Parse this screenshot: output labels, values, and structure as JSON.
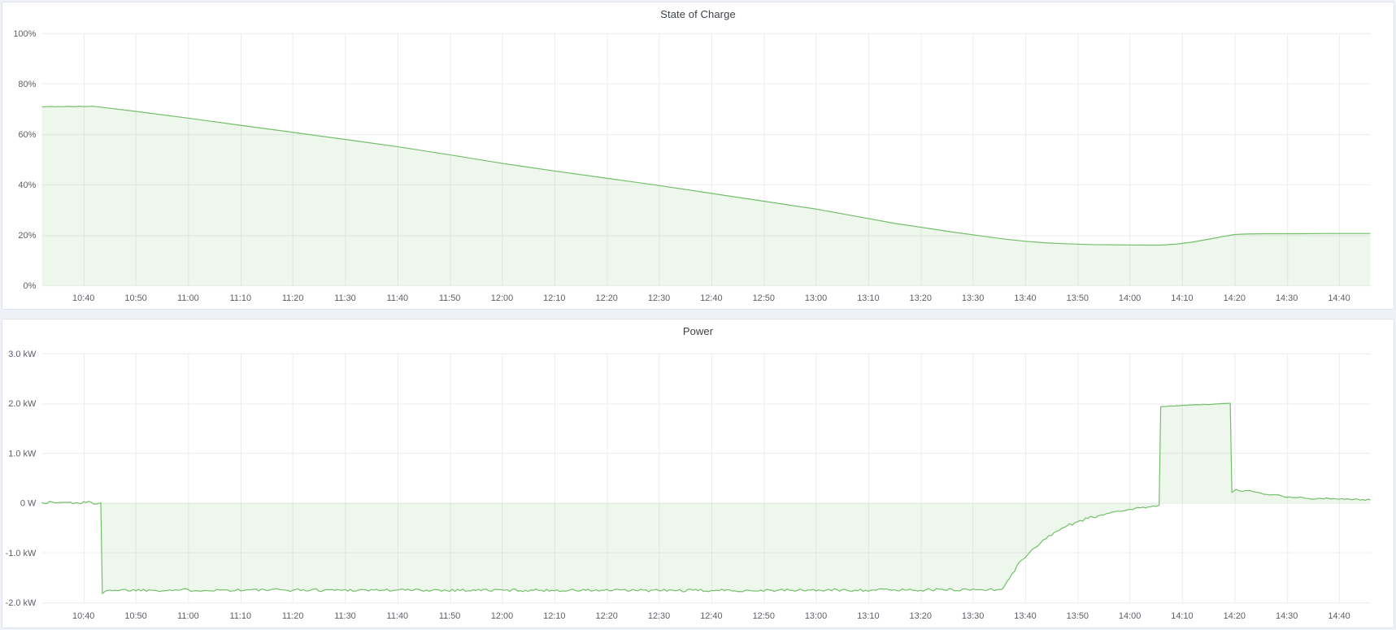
{
  "page": {
    "background": "#eef1f7",
    "panel_background": "#ffffff",
    "panel_border": "#e0e3e9"
  },
  "colors": {
    "line": "#73bf69",
    "fill": "rgba(115,191,105,0.13)",
    "grid": "#ececec",
    "axis_text": "#5b5f66",
    "title_text": "#3e4248"
  },
  "chart_data": [
    {
      "id": "soc",
      "type": "area",
      "title": "State of Charge",
      "y_unit": "%",
      "grid": true,
      "legend": "none",
      "x_range_minutes": [
        632,
        886
      ],
      "ylim": [
        0,
        100
      ],
      "baseline": 0,
      "y_ticks": [
        {
          "v": 0,
          "label": "0%"
        },
        {
          "v": 20,
          "label": "20%"
        },
        {
          "v": 40,
          "label": "40%"
        },
        {
          "v": 60,
          "label": "60%"
        },
        {
          "v": 80,
          "label": "80%"
        },
        {
          "v": 100,
          "label": "100%"
        }
      ],
      "x_ticks": [
        {
          "t": 640,
          "label": "10:40"
        },
        {
          "t": 650,
          "label": "10:50"
        },
        {
          "t": 660,
          "label": "11:00"
        },
        {
          "t": 670,
          "label": "11:10"
        },
        {
          "t": 680,
          "label": "11:20"
        },
        {
          "t": 690,
          "label": "11:30"
        },
        {
          "t": 700,
          "label": "11:40"
        },
        {
          "t": 710,
          "label": "11:50"
        },
        {
          "t": 720,
          "label": "12:00"
        },
        {
          "t": 730,
          "label": "12:10"
        },
        {
          "t": 740,
          "label": "12:20"
        },
        {
          "t": 750,
          "label": "12:30"
        },
        {
          "t": 760,
          "label": "12:40"
        },
        {
          "t": 770,
          "label": "12:50"
        },
        {
          "t": 780,
          "label": "13:00"
        },
        {
          "t": 790,
          "label": "13:10"
        },
        {
          "t": 800,
          "label": "13:20"
        },
        {
          "t": 810,
          "label": "13:30"
        },
        {
          "t": 820,
          "label": "13:40"
        },
        {
          "t": 830,
          "label": "13:50"
        },
        {
          "t": 840,
          "label": "14:00"
        },
        {
          "t": 850,
          "label": "14:10"
        },
        {
          "t": 860,
          "label": "14:20"
        },
        {
          "t": 870,
          "label": "14:30"
        },
        {
          "t": 880,
          "label": "14:40"
        }
      ],
      "series": [
        {
          "name": "State of Charge",
          "points": [
            [
              632,
              70.8,
              0.15
            ],
            [
              635,
              70.9,
              0.15
            ],
            [
              638,
              70.9,
              0.12
            ],
            [
              642,
              71.0,
              0
            ],
            [
              650,
              69.0,
              0
            ],
            [
              660,
              66.3,
              0
            ],
            [
              670,
              63.5,
              0
            ],
            [
              680,
              60.7,
              0
            ],
            [
              690,
              57.9,
              0
            ],
            [
              700,
              55.0,
              0
            ],
            [
              710,
              51.8,
              0
            ],
            [
              720,
              48.4,
              0
            ],
            [
              730,
              45.4,
              0
            ],
            [
              740,
              42.5,
              0
            ],
            [
              750,
              39.6,
              0
            ],
            [
              760,
              36.5,
              0
            ],
            [
              770,
              33.4,
              0
            ],
            [
              780,
              30.3,
              0
            ],
            [
              788,
              27.3,
              0
            ],
            [
              795,
              24.6,
              0
            ],
            [
              801,
              22.8,
              0
            ],
            [
              806,
              21.2,
              0
            ],
            [
              811,
              19.8,
              0
            ],
            [
              816,
              18.4,
              0
            ],
            [
              820,
              17.5,
              0
            ],
            [
              824,
              16.9,
              0
            ],
            [
              828,
              16.5,
              0
            ],
            [
              833,
              16.2,
              0
            ],
            [
              838,
              16.1,
              0
            ],
            [
              843,
              16.0,
              0
            ],
            [
              846,
              16.0,
              0
            ],
            [
              849,
              16.4,
              0
            ],
            [
              852,
              17.2,
              0
            ],
            [
              855,
              18.3,
              0
            ],
            [
              858,
              19.5,
              0
            ],
            [
              860,
              20.2,
              0
            ],
            [
              862,
              20.4,
              0
            ],
            [
              866,
              20.5,
              0
            ],
            [
              872,
              20.5,
              0
            ],
            [
              878,
              20.6,
              0
            ],
            [
              886,
              20.6,
              0
            ]
          ]
        }
      ]
    },
    {
      "id": "power",
      "type": "area",
      "title": "Power",
      "y_unit": "kW",
      "grid": true,
      "legend": "none",
      "x_range_minutes": [
        632,
        886
      ],
      "ylim": [
        -2.0,
        3.0
      ],
      "baseline": 0,
      "y_ticks": [
        {
          "v": -2.0,
          "label": "-2.0 kW"
        },
        {
          "v": -1.0,
          "label": "-1.0 kW"
        },
        {
          "v": 0,
          "label": "0 W"
        },
        {
          "v": 1.0,
          "label": "1.0 kW"
        },
        {
          "v": 2.0,
          "label": "2.0 kW"
        },
        {
          "v": 3.0,
          "label": "3.0 kW"
        }
      ],
      "x_ticks": [
        {
          "t": 640,
          "label": "10:40"
        },
        {
          "t": 650,
          "label": "10:50"
        },
        {
          "t": 660,
          "label": "11:00"
        },
        {
          "t": 670,
          "label": "11:10"
        },
        {
          "t": 680,
          "label": "11:20"
        },
        {
          "t": 690,
          "label": "11:30"
        },
        {
          "t": 700,
          "label": "11:40"
        },
        {
          "t": 710,
          "label": "11:50"
        },
        {
          "t": 720,
          "label": "12:00"
        },
        {
          "t": 730,
          "label": "12:10"
        },
        {
          "t": 740,
          "label": "12:20"
        },
        {
          "t": 750,
          "label": "12:30"
        },
        {
          "t": 760,
          "label": "12:40"
        },
        {
          "t": 770,
          "label": "12:50"
        },
        {
          "t": 780,
          "label": "13:00"
        },
        {
          "t": 790,
          "label": "13:10"
        },
        {
          "t": 800,
          "label": "13:20"
        },
        {
          "t": 810,
          "label": "13:30"
        },
        {
          "t": 820,
          "label": "13:40"
        },
        {
          "t": 830,
          "label": "13:50"
        },
        {
          "t": 840,
          "label": "14:00"
        },
        {
          "t": 850,
          "label": "14:10"
        },
        {
          "t": 860,
          "label": "14:20"
        },
        {
          "t": 870,
          "label": "14:30"
        },
        {
          "t": 880,
          "label": "14:40"
        }
      ],
      "series": [
        {
          "name": "Power",
          "points": [
            [
              632,
              0.01,
              0.035
            ],
            [
              643.3,
              0.0,
              0
            ],
            [
              643.6,
              -1.82,
              0
            ],
            [
              644.2,
              -1.77,
              0
            ],
            [
              645,
              -1.75,
              0.028
            ],
            [
              700,
              -1.75,
              0.028
            ],
            [
              760,
              -1.76,
              0.028
            ],
            [
              815.5,
              -1.74,
              0.02
            ],
            [
              817.5,
              -1.42,
              0.04
            ],
            [
              819.5,
              -1.14,
              0.04
            ],
            [
              821.5,
              -0.92,
              0.04
            ],
            [
              823.5,
              -0.74,
              0.035
            ],
            [
              826,
              -0.57,
              0.035
            ],
            [
              828,
              -0.46,
              0.03
            ],
            [
              830,
              -0.38,
              0.03
            ],
            [
              832,
              -0.31,
              0.028
            ],
            [
              834,
              -0.26,
              0.025
            ],
            [
              836,
              -0.21,
              0.022
            ],
            [
              838,
              -0.17,
              0.02
            ],
            [
              840,
              -0.13,
              0.018
            ],
            [
              842,
              -0.1,
              0.015
            ],
            [
              844,
              -0.08,
              0.012
            ],
            [
              845.6,
              -0.05,
              0
            ],
            [
              845.9,
              1.93,
              0.006
            ],
            [
              849,
              1.95,
              0.006
            ],
            [
              853,
              1.97,
              0.005
            ],
            [
              856,
              1.98,
              0.004
            ],
            [
              859.2,
              2.0,
              0
            ],
            [
              859.5,
              0.21,
              0
            ],
            [
              860.3,
              0.27,
              0.012
            ],
            [
              861.5,
              0.23,
              0.01
            ],
            [
              863,
              0.25,
              0.01
            ],
            [
              864.5,
              0.21,
              0.008
            ],
            [
              866,
              0.17,
              0.008
            ],
            [
              868.5,
              0.16,
              0.008
            ],
            [
              869.5,
              0.12,
              0.01
            ],
            [
              873,
              0.11,
              0.01
            ],
            [
              874.5,
              0.08,
              0.012
            ],
            [
              878,
              0.09,
              0.012
            ],
            [
              881,
              0.07,
              0.014
            ],
            [
              886,
              0.06,
              0
            ]
          ]
        }
      ]
    }
  ]
}
